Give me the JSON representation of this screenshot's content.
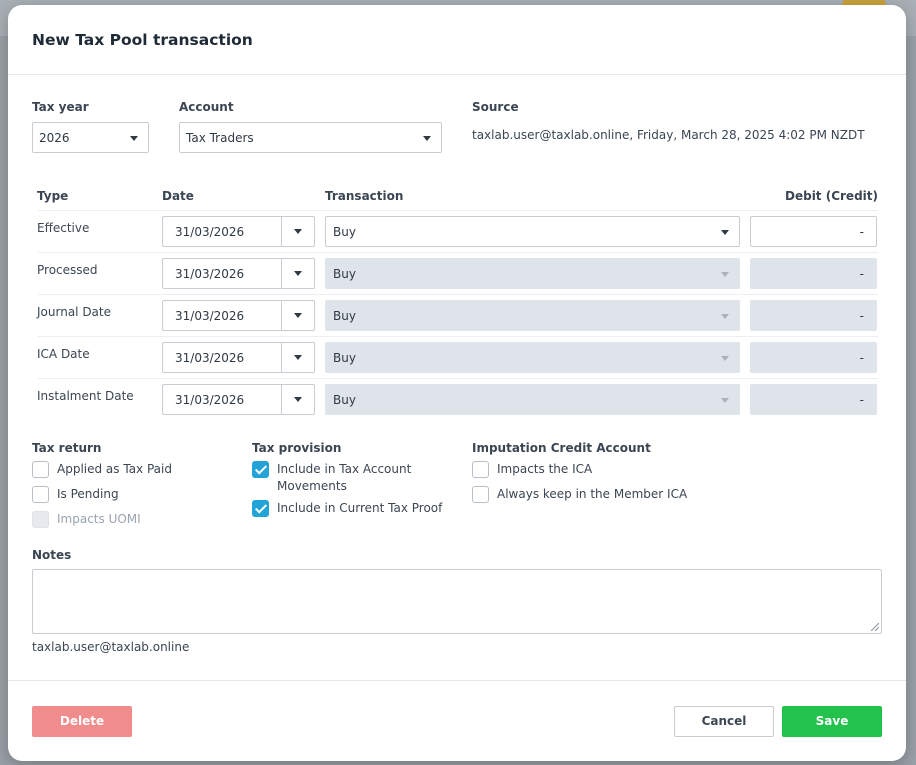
{
  "modal": {
    "title": "New Tax Pool transaction"
  },
  "top_fields": {
    "tax_year_label": "Tax year",
    "tax_year_value": "2026",
    "account_label": "Account",
    "account_value": "Tax Traders",
    "source_label": "Source",
    "source_value": "taxlab.user@taxlab.online, Friday, March 28, 2025 4:02 PM NZDT"
  },
  "table": {
    "headers": {
      "type": "Type",
      "date": "Date",
      "transaction": "Transaction",
      "debit": "Debit (Credit)"
    },
    "rows": [
      {
        "type": "Effective",
        "date": "31/03/2026",
        "transaction": "Buy",
        "debit": "-",
        "enabled": true
      },
      {
        "type": "Processed",
        "date": "31/03/2026",
        "transaction": "Buy",
        "debit": "-",
        "enabled": false
      },
      {
        "type": "Journal Date",
        "date": "31/03/2026",
        "transaction": "Buy",
        "debit": "-",
        "enabled": false
      },
      {
        "type": "ICA Date",
        "date": "31/03/2026",
        "transaction": "Buy",
        "debit": "-",
        "enabled": false
      },
      {
        "type": "Instalment Date",
        "date": "31/03/2026",
        "transaction": "Buy",
        "debit": "-",
        "enabled": false
      }
    ]
  },
  "tax_return": {
    "label": "Tax return",
    "options": [
      {
        "label": "Applied as Tax Paid",
        "checked": false,
        "disabled": false
      },
      {
        "label": "Is Pending",
        "checked": false,
        "disabled": false
      },
      {
        "label": "Impacts UOMI",
        "checked": false,
        "disabled": true
      }
    ]
  },
  "tax_provision": {
    "label": "Tax provision",
    "options": [
      {
        "label_line1": "Include in Tax Account",
        "label_line2": "Movements",
        "checked": true
      },
      {
        "label": "Include in Current Tax Proof",
        "checked": true
      }
    ]
  },
  "ica": {
    "label": "Imputation Credit Account",
    "options": [
      {
        "label": "Impacts the ICA",
        "checked": false
      },
      {
        "label": "Always keep in the Member ICA",
        "checked": false
      }
    ]
  },
  "notes": {
    "label": "Notes",
    "value": "",
    "author": "taxlab.user@taxlab.online"
  },
  "buttons": {
    "delete": "Delete",
    "cancel": "Cancel",
    "save": "Save"
  },
  "colors": {
    "save": "#23c24c",
    "delete": "#f08c8c",
    "checkbox_checked": "#23a3d6",
    "disabled_field": "#dfe4ea"
  },
  "icons": [
    "chevron-down-icon",
    "checkmark-icon",
    "resize-grip-icon"
  ]
}
